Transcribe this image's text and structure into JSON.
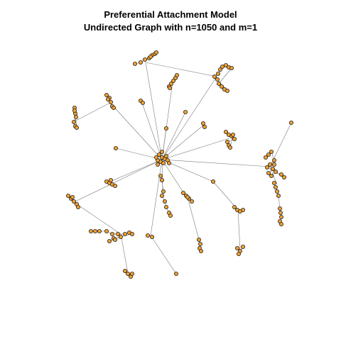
{
  "title": {
    "line1": "Preferential Attachment Model",
    "line2": "Undirected Graph with n=1050 and m=1"
  },
  "graph": {
    "model": "preferential attachment",
    "directed": false,
    "n": 1050,
    "m": 1
  },
  "colors": {
    "background": "#ffffff",
    "node_fill": "#f0a030",
    "node_border": "#222222",
    "edge": "#7a7a7a",
    "title": "#000000"
  }
}
